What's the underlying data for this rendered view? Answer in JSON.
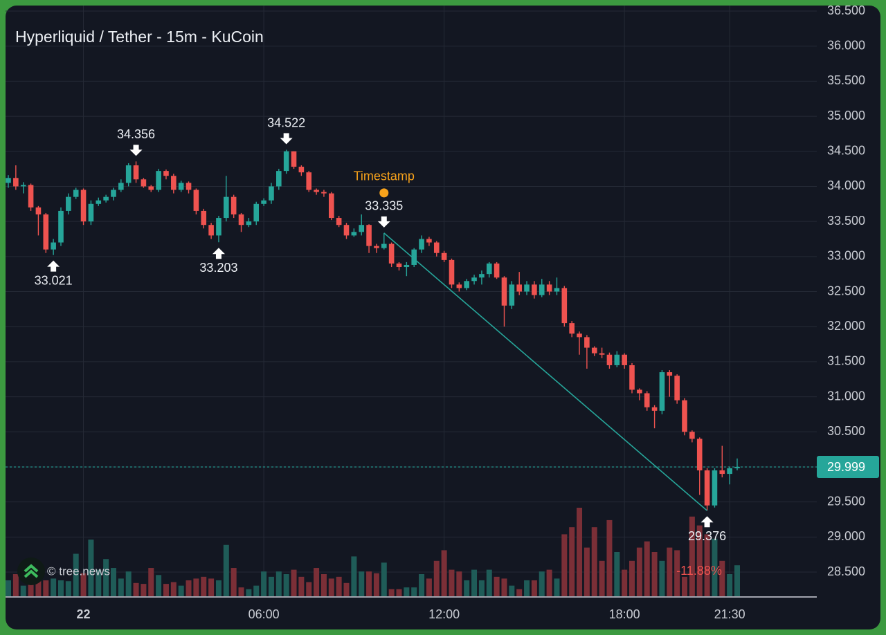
{
  "chart_data": {
    "type": "candlestick",
    "title": "Hyperliquid / Tether - 15m - KuCoin",
    "watermark": "© tree.news",
    "timestamp_label": "Timestamp",
    "change_label": "-11.88%",
    "last_price": 29.999,
    "up_color": "#26a69a",
    "down_color": "#ef5350",
    "categories": [
      null,
      null,
      null,
      null,
      null,
      null,
      null,
      null,
      null,
      null,
      "22",
      null,
      null,
      null,
      null,
      null,
      null,
      null,
      null,
      null,
      null,
      null,
      null,
      null,
      null,
      null,
      null,
      null,
      null,
      null,
      null,
      null,
      null,
      null,
      "06:00",
      null,
      null,
      null,
      null,
      null,
      null,
      null,
      null,
      null,
      null,
      null,
      null,
      null,
      null,
      null,
      null,
      null,
      null,
      null,
      null,
      null,
      null,
      null,
      "12:00",
      null,
      null,
      null,
      null,
      null,
      null,
      null,
      null,
      null,
      null,
      null,
      null,
      null,
      null,
      null,
      null,
      null,
      null,
      null,
      null,
      null,
      null,
      null,
      "18:00",
      null,
      null,
      null,
      null,
      null,
      null,
      null,
      null,
      null,
      null,
      null,
      null,
      null,
      "21:30",
      null
    ],
    "open": [
      34.05,
      34.12,
      34.0,
      34.02,
      33.7,
      33.6,
      33.1,
      33.2,
      33.65,
      33.85,
      33.95,
      33.5,
      33.75,
      33.8,
      33.85,
      33.95,
      34.05,
      34.3,
      34.1,
      34.0,
      33.95,
      34.22,
      34.15,
      33.95,
      34.05,
      33.95,
      33.65,
      33.45,
      33.3,
      33.55,
      33.85,
      33.6,
      33.45,
      33.5,
      33.75,
      33.8,
      34.0,
      34.22,
      34.5,
      34.28,
      34.2,
      33.95,
      33.92,
      33.9,
      33.55,
      33.45,
      33.3,
      33.35,
      33.45,
      33.15,
      33.12,
      33.18,
      32.9,
      32.85,
      32.88,
      33.1,
      33.25,
      33.2,
      33.05,
      32.95,
      32.6,
      32.55,
      32.65,
      32.7,
      32.75,
      32.9,
      32.7,
      32.3,
      32.6,
      32.5,
      32.6,
      32.45,
      32.6,
      32.5,
      32.55,
      32.05,
      31.9,
      31.85,
      31.7,
      31.62,
      31.6,
      31.45,
      31.6,
      31.45,
      31.1,
      31.05,
      30.85,
      30.8,
      31.35,
      31.3,
      30.95,
      30.5,
      30.4,
      29.95,
      29.45,
      29.95,
      29.9,
      29.98
    ],
    "high": [
      34.16,
      34.3,
      34.06,
      34.04,
      33.72,
      33.62,
      33.25,
      33.7,
      33.9,
      33.98,
      33.97,
      33.8,
      33.84,
      33.88,
      33.98,
      34.1,
      34.33,
      34.356,
      34.12,
      34.02,
      34.25,
      34.24,
      34.18,
      34.08,
      34.07,
      33.97,
      33.68,
      33.48,
      33.58,
      34.15,
      33.88,
      33.62,
      33.55,
      33.78,
      33.83,
      34.05,
      34.25,
      34.522,
      34.5,
      34.3,
      34.22,
      33.97,
      33.95,
      33.92,
      33.58,
      33.48,
      33.4,
      33.6,
      33.46,
      33.18,
      33.335,
      33.2,
      32.92,
      32.92,
      33.12,
      33.3,
      33.28,
      33.22,
      33.08,
      32.97,
      32.63,
      32.68,
      32.74,
      32.8,
      32.92,
      32.92,
      32.72,
      32.65,
      32.78,
      32.65,
      32.65,
      32.68,
      32.65,
      32.7,
      32.58,
      32.08,
      31.93,
      31.88,
      31.72,
      31.7,
      31.63,
      31.65,
      31.62,
      31.48,
      31.12,
      31.08,
      30.88,
      31.38,
      31.38,
      31.32,
      30.98,
      30.52,
      30.42,
      29.98,
      29.98,
      30.3,
      30.0,
      30.12
    ],
    "low": [
      33.98,
      33.95,
      33.9,
      33.65,
      33.3,
      33.05,
      33.021,
      33.15,
      33.6,
      33.82,
      33.45,
      33.45,
      33.72,
      33.77,
      33.8,
      33.92,
      34.0,
      34.05,
      33.98,
      33.92,
      33.92,
      34.1,
      33.9,
      33.92,
      33.9,
      33.6,
      33.4,
      33.25,
      33.203,
      33.5,
      33.55,
      33.35,
      33.42,
      33.45,
      33.72,
      33.75,
      33.95,
      34.18,
      34.25,
      34.15,
      33.92,
      33.88,
      33.85,
      33.52,
      33.42,
      33.25,
      33.28,
      33.3,
      33.05,
      33.05,
      33.1,
      32.85,
      32.8,
      32.72,
      32.85,
      33.05,
      33.15,
      33.0,
      32.92,
      32.55,
      32.5,
      32.52,
      32.6,
      32.6,
      32.7,
      32.68,
      32.0,
      32.25,
      32.45,
      32.45,
      32.4,
      32.42,
      32.45,
      32.45,
      32.0,
      31.85,
      31.6,
      31.4,
      31.58,
      31.55,
      31.4,
      31.42,
      31.4,
      31.05,
      30.95,
      30.8,
      30.55,
      30.75,
      31.0,
      30.9,
      30.45,
      30.35,
      29.6,
      29.376,
      29.42,
      29.85,
      29.75,
      29.95
    ],
    "close": [
      34.12,
      34.0,
      34.02,
      33.7,
      33.6,
      33.1,
      33.2,
      33.65,
      33.85,
      33.95,
      33.5,
      33.75,
      33.8,
      33.85,
      33.95,
      34.05,
      34.3,
      34.1,
      34.0,
      33.95,
      34.22,
      34.15,
      33.95,
      34.05,
      33.95,
      33.65,
      33.45,
      33.3,
      33.55,
      33.85,
      33.6,
      33.45,
      33.5,
      33.75,
      33.8,
      34.0,
      34.22,
      34.5,
      34.28,
      34.2,
      33.95,
      33.92,
      33.9,
      33.55,
      33.45,
      33.3,
      33.35,
      33.45,
      33.15,
      33.12,
      33.18,
      32.9,
      32.85,
      32.88,
      33.1,
      33.25,
      33.2,
      33.05,
      32.95,
      32.6,
      32.55,
      32.65,
      32.7,
      32.75,
      32.9,
      32.7,
      32.3,
      32.6,
      32.5,
      32.6,
      32.45,
      32.6,
      32.5,
      32.55,
      32.05,
      31.9,
      31.85,
      31.7,
      31.62,
      31.6,
      31.45,
      31.6,
      31.45,
      31.1,
      31.05,
      30.85,
      30.8,
      31.35,
      31.3,
      30.95,
      30.5,
      30.4,
      29.95,
      29.45,
      29.95,
      29.9,
      29.98,
      29.999
    ],
    "volume": [
      18,
      25,
      12,
      20,
      22,
      18,
      20,
      18,
      17,
      48,
      26,
      64,
      30,
      42,
      32,
      20,
      28,
      15,
      14,
      32,
      24,
      14,
      16,
      12,
      18,
      20,
      22,
      20,
      18,
      58,
      32,
      10,
      8,
      12,
      28,
      22,
      28,
      25,
      30,
      22,
      16,
      32,
      25,
      20,
      22,
      15,
      45,
      28,
      28,
      26,
      38,
      8,
      8,
      10,
      10,
      25,
      20,
      40,
      52,
      30,
      28,
      18,
      30,
      18,
      30,
      22,
      20,
      12,
      8,
      18,
      18,
      28,
      30,
      20,
      70,
      78,
      100,
      55,
      78,
      40,
      86,
      50,
      30,
      40,
      55,
      62,
      50,
      40,
      55,
      52,
      22,
      90,
      80,
      70,
      65,
      40,
      25,
      35
    ],
    "vlim": [
      0,
      100
    ],
    "markers": [
      33.021,
      34.356,
      33.203,
      34.522,
      33.335,
      29.376
    ],
    "trendline": [
      33.335,
      29.376
    ],
    "ylim": [
      28.5,
      36.5
    ],
    "yticks": [
      {
        "value": 28.5,
        "label": "28.500"
      },
      {
        "value": 29.0,
        "label": "29.000"
      },
      {
        "value": 29.5,
        "label": "29.500"
      },
      {
        "value": 30.0,
        "label": "30.000"
      },
      {
        "value": 30.5,
        "label": "30.500"
      },
      {
        "value": 31.0,
        "label": "31.000"
      },
      {
        "value": 31.5,
        "label": "31.500"
      },
      {
        "value": 32.0,
        "label": "32.000"
      },
      {
        "value": 32.5,
        "label": "32.500"
      },
      {
        "value": 33.0,
        "label": "33.000"
      },
      {
        "value": 33.5,
        "label": "33.500"
      },
      {
        "value": 34.0,
        "label": "34.000"
      },
      {
        "value": 34.5,
        "label": "34.500"
      },
      {
        "value": 35.0,
        "label": "35.000"
      },
      {
        "value": 35.5,
        "label": "35.500"
      },
      {
        "value": 36.0,
        "label": "36.000"
      },
      {
        "value": 36.5,
        "label": "36.500"
      }
    ],
    "grid": true
  }
}
